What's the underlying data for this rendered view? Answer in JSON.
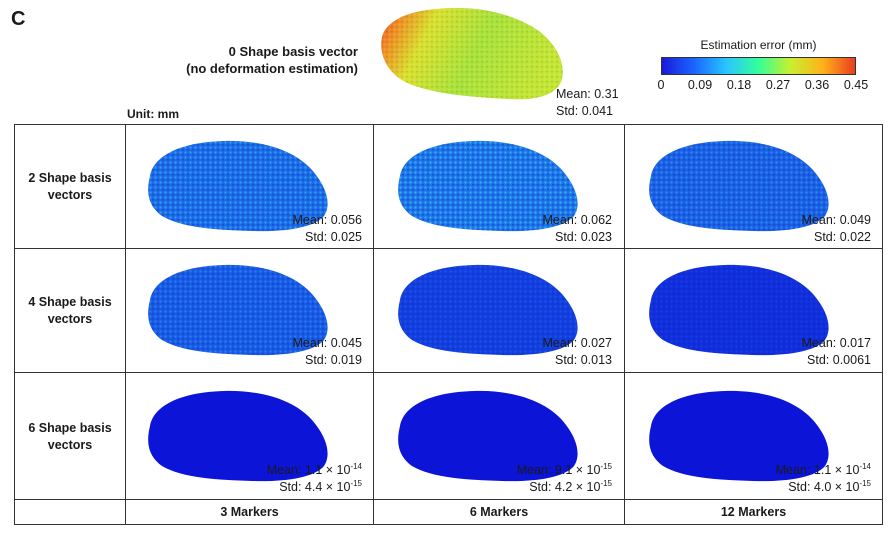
{
  "panel_letter": "C",
  "baseline": {
    "title_line1": "0 Shape basis vector",
    "title_line2": "(no deformation estimation)",
    "mean": "Mean: 0.31",
    "std": "Std: 0.041"
  },
  "colorbar": {
    "title": "Estimation error (mm)",
    "ticks": [
      "0",
      "0.09",
      "0.18",
      "0.27",
      "0.36",
      "0.45"
    ],
    "range": [
      0,
      0.45
    ],
    "colors": [
      "#1a1ad9",
      "#1a66ff",
      "#29c5ff",
      "#33ff99",
      "#c8f02e",
      "#ffb21a",
      "#e83d1f"
    ]
  },
  "unit_label": "Unit: mm",
  "rows": [
    {
      "label_line1": "2 Shape basis",
      "label_line2": "vectors"
    },
    {
      "label_line1": "4 Shape basis",
      "label_line2": "vectors"
    },
    {
      "label_line1": "6 Shape basis",
      "label_line2": "vectors"
    }
  ],
  "columns": [
    {
      "label": "3 Markers"
    },
    {
      "label": "6 Markers"
    },
    {
      "label": "12 Markers"
    }
  ],
  "cells": [
    [
      {
        "mean": "Mean: 0.056",
        "std": "Std: 0.025",
        "level": 0.056
      },
      {
        "mean": "Mean: 0.062",
        "std": "Std: 0.023",
        "level": 0.062
      },
      {
        "mean": "Mean: 0.049",
        "std": "Std: 0.022",
        "level": 0.049
      }
    ],
    [
      {
        "mean": "Mean: 0.045",
        "std": "Std: 0.019",
        "level": 0.045
      },
      {
        "mean": "Mean: 0.027",
        "std": "Std: 0.013",
        "level": 0.027
      },
      {
        "mean": "Mean: 0.017",
        "std": "Std: 0.0061",
        "level": 0.017
      }
    ],
    [
      {
        "mean_base": "Mean: 1.1 × 10",
        "mean_exp": "-14",
        "std_base": "Std: 4.4 × 10",
        "std_exp": "-15",
        "level": 0
      },
      {
        "mean_base": "Mean: 9.1 × 10",
        "mean_exp": "-15",
        "std_base": "Std: 4.2 × 10",
        "std_exp": "-15",
        "level": 0
      },
      {
        "mean_base": "Mean: 1.1 × 10",
        "mean_exp": "-14",
        "std_base": "Std: 4.0 × 10",
        "std_exp": "-15",
        "level": 0
      }
    ]
  ]
}
